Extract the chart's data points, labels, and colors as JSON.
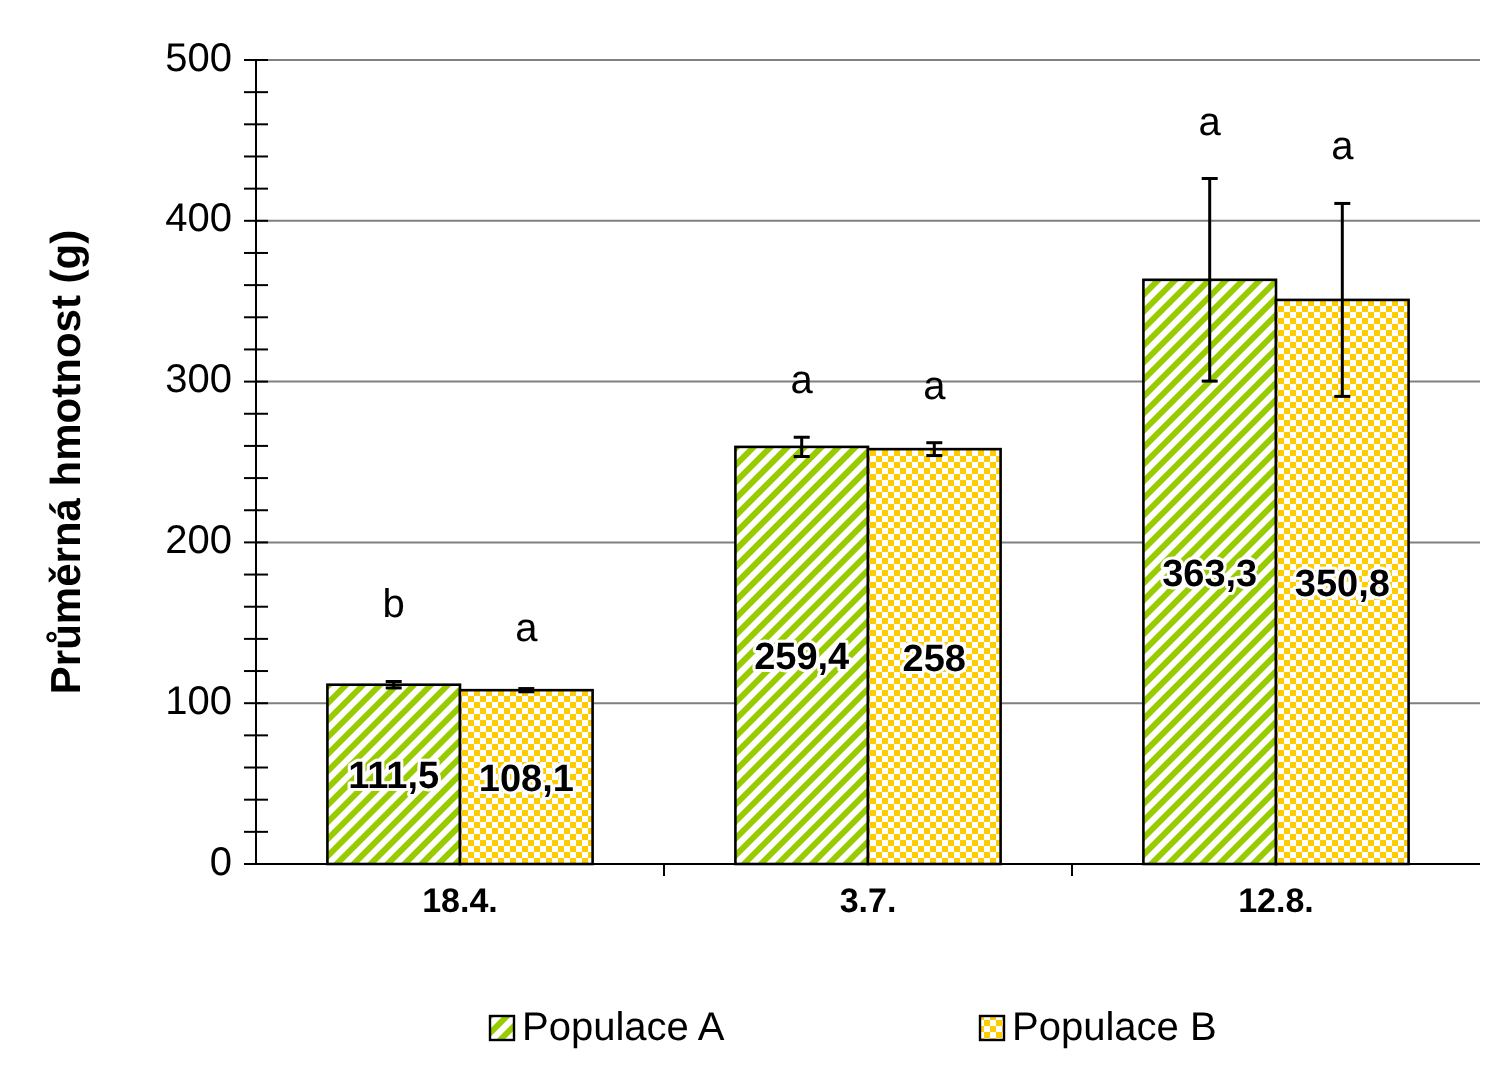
{
  "chart_data": {
    "type": "bar",
    "ylabel": "Průměrná hmotnost (g)",
    "categories": [
      "18.4.",
      "3.7.",
      "12.8."
    ],
    "series": [
      {
        "name": "Populace A",
        "color": "#99cc00",
        "values": [
          111.5,
          259.4,
          363.3
        ],
        "errors": [
          2,
          6,
          63
        ],
        "value_labels": [
          "111,5",
          "259,4",
          "363,3"
        ]
      },
      {
        "name": "Populace B",
        "color": "#ffcc00",
        "values": [
          108.1,
          258,
          350.8
        ],
        "errors": [
          1,
          4,
          60
        ],
        "value_labels": [
          "108,1",
          "258",
          "350,8"
        ]
      }
    ],
    "ylim": [
      0,
      500
    ],
    "yticks": [
      0,
      {
        "value": 20,
        "label": null
      },
      {
        "value": 40,
        "label": null
      },
      {
        "value": 60,
        "label": null
      },
      {
        "value": 80,
        "label": null
      },
      100,
      {
        "value": 120,
        "label": null
      },
      {
        "value": 140,
        "label": null
      },
      {
        "value": 160,
        "label": null
      },
      {
        "value": 180,
        "label": null
      },
      200,
      {
        "value": 220,
        "label": null
      },
      {
        "value": 240,
        "label": null
      },
      {
        "value": 260,
        "label": null
      },
      {
        "value": 280,
        "label": null
      },
      300,
      {
        "value": 320,
        "label": null
      },
      {
        "value": 340,
        "label": null
      },
      {
        "value": 360,
        "label": null
      },
      {
        "value": 380,
        "label": null
      },
      400,
      {
        "value": 420,
        "label": null
      },
      {
        "value": 440,
        "label": null
      },
      {
        "value": 460,
        "label": null
      },
      {
        "value": 480,
        "label": null
      },
      500
    ],
    "grid": "y",
    "legend": "bottom",
    "annotations": [
      "b",
      "a",
      "a",
      "a",
      "a",
      "a"
    ]
  }
}
